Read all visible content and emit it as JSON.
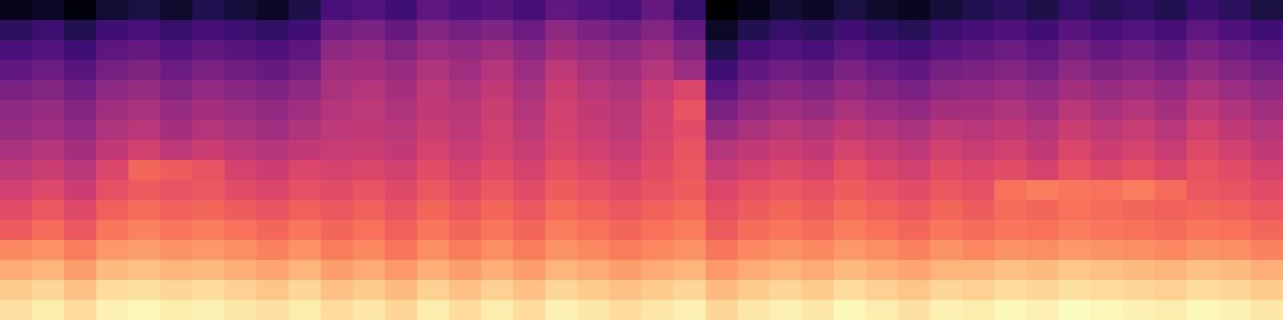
{
  "chart_data": {
    "type": "heatmap",
    "tick_labels": false,
    "cells": [
      [
        12,
        14,
        10,
        16,
        18,
        15,
        20,
        17,
        14,
        19,
        28,
        30,
        26,
        32,
        29,
        31,
        27,
        33,
        30,
        28,
        34,
        24,
        8,
        12,
        16,
        14,
        18,
        15,
        13,
        17,
        20,
        22,
        19,
        24,
        21,
        23,
        20,
        25,
        22,
        18
      ],
      [
        22,
        25,
        20,
        26,
        28,
        24,
        27,
        25,
        23,
        26,
        36,
        38,
        34,
        40,
        37,
        39,
        35,
        42,
        38,
        36,
        40,
        33,
        14,
        20,
        24,
        22,
        26,
        23,
        21,
        25,
        27,
        29,
        26,
        31,
        28,
        30,
        27,
        32,
        29,
        26
      ],
      [
        28,
        30,
        26,
        32,
        34,
        30,
        33,
        31,
        29,
        32,
        42,
        44,
        40,
        45,
        43,
        46,
        41,
        47,
        44,
        42,
        46,
        40,
        20,
        27,
        30,
        28,
        32,
        29,
        27,
        31,
        33,
        35,
        32,
        37,
        34,
        36,
        33,
        38,
        35,
        32
      ],
      [
        33,
        35,
        31,
        37,
        39,
        35,
        38,
        36,
        34,
        37,
        46,
        47,
        44,
        49,
        46,
        50,
        45,
        52,
        48,
        46,
        50,
        45,
        26,
        33,
        36,
        34,
        38,
        35,
        33,
        37,
        38,
        40,
        37,
        42,
        39,
        41,
        38,
        43,
        40,
        37
      ],
      [
        38,
        40,
        36,
        42,
        44,
        40,
        43,
        41,
        39,
        42,
        48,
        50,
        47,
        52,
        49,
        53,
        48,
        55,
        51,
        49,
        54,
        58,
        32,
        38,
        41,
        39,
        43,
        40,
        38,
        42,
        43,
        45,
        42,
        47,
        44,
        46,
        43,
        48,
        45,
        42
      ],
      [
        42,
        44,
        40,
        46,
        48,
        44,
        47,
        45,
        43,
        46,
        50,
        52,
        49,
        53,
        51,
        55,
        50,
        56,
        53,
        51,
        56,
        62,
        38,
        43,
        46,
        44,
        48,
        45,
        43,
        47,
        47,
        49,
        46,
        51,
        48,
        50,
        47,
        52,
        49,
        46
      ],
      [
        44,
        46,
        43,
        49,
        51,
        47,
        50,
        48,
        46,
        49,
        52,
        53,
        51,
        55,
        52,
        56,
        52,
        57,
        54,
        52,
        57,
        60,
        44,
        48,
        51,
        49,
        53,
        50,
        48,
        52,
        51,
        53,
        50,
        55,
        52,
        54,
        51,
        56,
        53,
        50
      ],
      [
        48,
        50,
        47,
        53,
        56,
        52,
        55,
        52,
        50,
        53,
        54,
        55,
        53,
        57,
        54,
        57,
        54,
        58,
        56,
        54,
        58,
        62,
        50,
        53,
        55,
        53,
        57,
        54,
        52,
        56,
        54,
        56,
        53,
        58,
        55,
        57,
        54,
        59,
        56,
        53
      ],
      [
        52,
        55,
        51,
        58,
        66,
        64,
        62,
        57,
        55,
        58,
        57,
        58,
        56,
        60,
        57,
        60,
        57,
        61,
        59,
        57,
        60,
        63,
        54,
        57,
        59,
        57,
        61,
        58,
        56,
        60,
        58,
        60,
        57,
        62,
        59,
        61,
        58,
        62,
        60,
        57
      ],
      [
        56,
        59,
        55,
        61,
        64,
        62,
        63,
        60,
        58,
        61,
        60,
        62,
        59,
        63,
        60,
        63,
        60,
        64,
        62,
        60,
        62,
        64,
        58,
        61,
        63,
        61,
        64,
        62,
        60,
        63,
        61,
        68,
        70,
        69,
        68,
        70,
        67,
        63,
        62,
        60
      ],
      [
        60,
        63,
        59,
        65,
        67,
        65,
        66,
        64,
        62,
        65,
        63,
        65,
        62,
        66,
        63,
        66,
        63,
        67,
        65,
        63,
        65,
        67,
        61,
        64,
        66,
        64,
        67,
        65,
        63,
        66,
        64,
        67,
        66,
        68,
        67,
        66,
        65,
        66,
        65,
        63
      ],
      [
        64,
        67,
        63,
        69,
        71,
        69,
        70,
        68,
        66,
        69,
        66,
        68,
        65,
        69,
        66,
        69,
        66,
        70,
        68,
        66,
        68,
        70,
        64,
        67,
        69,
        67,
        70,
        68,
        66,
        69,
        67,
        69,
        68,
        70,
        69,
        68,
        67,
        69,
        68,
        66
      ],
      [
        72,
        74,
        70,
        75,
        76,
        74,
        75,
        73,
        71,
        74,
        70,
        72,
        69,
        73,
        70,
        73,
        70,
        74,
        72,
        70,
        72,
        74,
        69,
        72,
        74,
        72,
        75,
        73,
        71,
        74,
        72,
        74,
        73,
        75,
        74,
        73,
        72,
        74,
        73,
        71
      ],
      [
        78,
        80,
        76,
        81,
        82,
        80,
        81,
        79,
        77,
        80,
        76,
        78,
        75,
        79,
        76,
        79,
        76,
        80,
        78,
        76,
        78,
        80,
        75,
        78,
        80,
        78,
        81,
        79,
        77,
        80,
        80,
        82,
        81,
        83,
        82,
        81,
        80,
        82,
        81,
        79
      ],
      [
        84,
        86,
        82,
        87,
        88,
        86,
        87,
        85,
        83,
        86,
        82,
        84,
        81,
        85,
        82,
        85,
        82,
        86,
        84,
        82,
        84,
        86,
        81,
        84,
        86,
        84,
        87,
        85,
        83,
        86,
        85,
        87,
        86,
        88,
        87,
        86,
        85,
        87,
        86,
        84
      ],
      [
        88,
        90,
        87,
        91,
        92,
        90,
        91,
        89,
        88,
        90,
        87,
        89,
        86,
        90,
        87,
        90,
        87,
        91,
        89,
        87,
        89,
        91,
        86,
        89,
        91,
        89,
        92,
        90,
        88,
        91,
        90,
        92,
        91,
        93,
        92,
        91,
        90,
        92,
        91,
        89
      ]
    ]
  }
}
